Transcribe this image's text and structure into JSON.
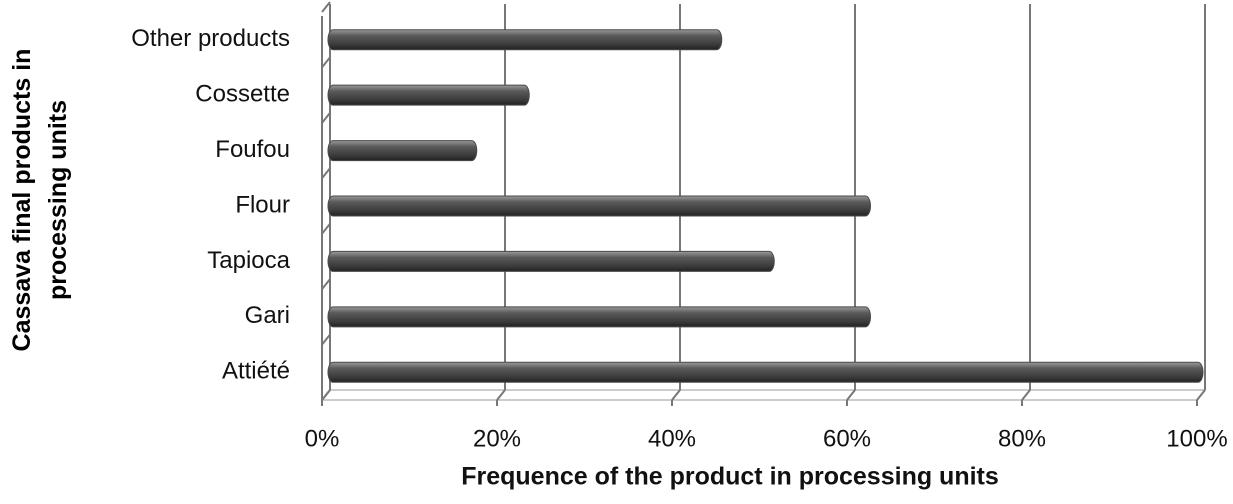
{
  "chart_data": {
    "type": "bar",
    "orientation": "horizontal",
    "x_axis_title": "Frequence of the product in processing units",
    "y_axis_title": "Cassava final products in processing units",
    "categories": [
      "Attiété",
      "Gari",
      "Tapioca",
      "Flour",
      "Foufou",
      "Cossette",
      "Other products"
    ],
    "values": [
      100,
      62,
      51,
      62,
      17,
      23,
      45
    ],
    "color": "#4a4a4a",
    "xlim": [
      0,
      100
    ],
    "xticks": [
      {
        "value": 0,
        "label": "0%"
      },
      {
        "value": 20,
        "label": "20%"
      },
      {
        "value": 40,
        "label": "40%"
      },
      {
        "value": 60,
        "label": "60%"
      },
      {
        "value": 80,
        "label": "80%"
      },
      {
        "value": 100,
        "label": "100%"
      }
    ],
    "grid": true
  }
}
